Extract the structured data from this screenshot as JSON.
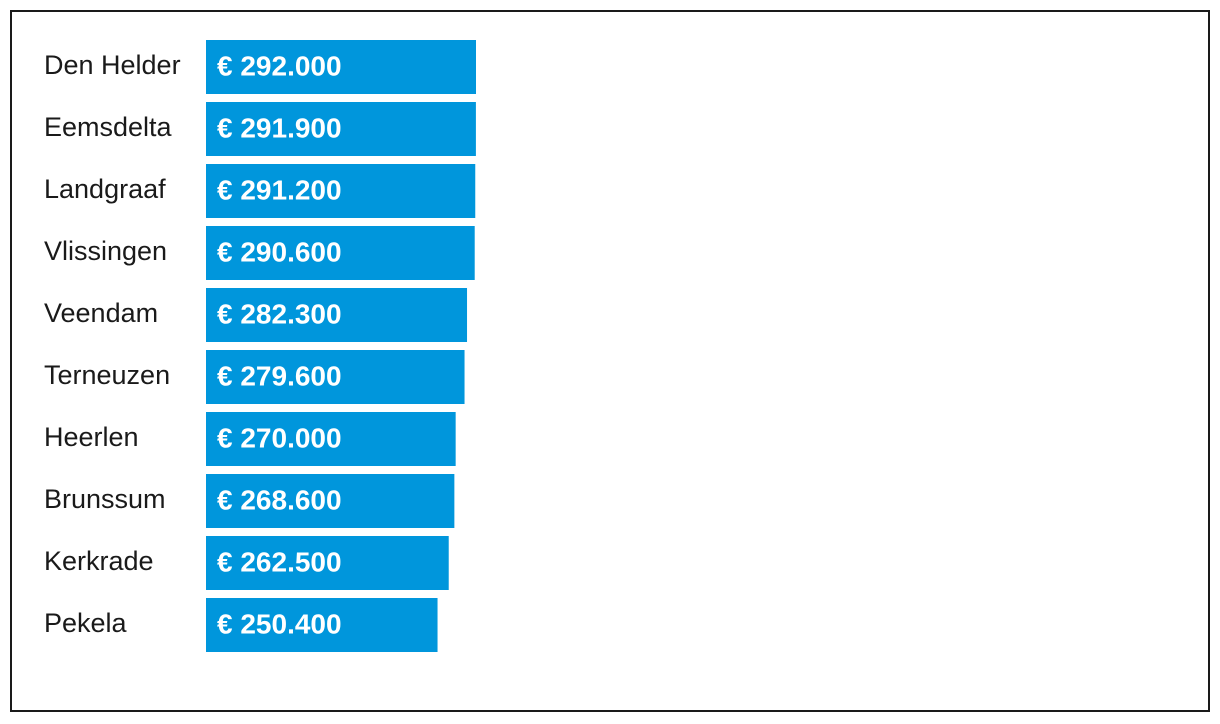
{
  "chart_data": {
    "type": "bar",
    "orientation": "horizontal",
    "categories": [
      "Den Helder",
      "Eemsdelta",
      "Landgraaf",
      "Vlissingen",
      "Veendam",
      "Terneuzen",
      "Heerlen",
      "Brunssum",
      "Kerkrade",
      "Pekela"
    ],
    "values": [
      292000,
      291900,
      291200,
      290600,
      282300,
      279600,
      270000,
      268600,
      262500,
      250400
    ],
    "value_labels": [
      "€ 292.000",
      "€ 291.900",
      "€ 291.200",
      "€ 290.600",
      "€ 282.300",
      "€ 279.600",
      "€ 270.000",
      "€ 268.600",
      "€ 262.500",
      "€ 250.400"
    ],
    "title": "",
    "xlabel": "",
    "ylabel": "",
    "grid": false,
    "legend": "none",
    "bar_color": "#0096DC",
    "label_color": "#ffffff",
    "text_color": "#1a1a1a"
  }
}
